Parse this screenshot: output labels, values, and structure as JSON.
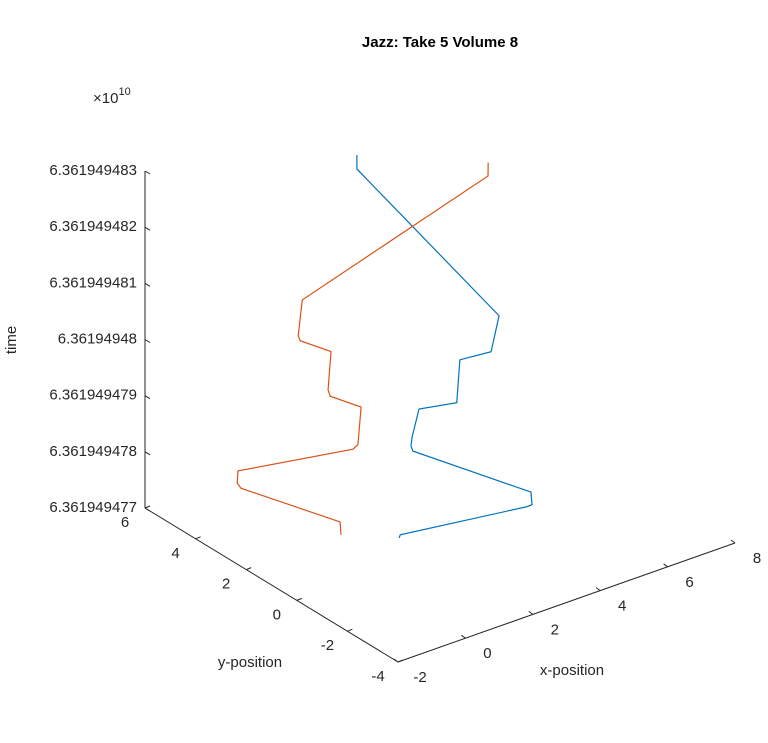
{
  "chart_data": {
    "type": "line3d",
    "title": "Jazz: Take 5 Volume 8",
    "xlabel": "x-position",
    "ylabel": "y-position",
    "zlabel": "time",
    "z_multiplier": "×10",
    "z_exponent": "10",
    "xlim": [
      -2,
      8
    ],
    "ylim": [
      -4,
      6
    ],
    "zlim": [
      63619494770,
      63619494830
    ],
    "xticks": [
      -2,
      0,
      2,
      4,
      6,
      8
    ],
    "yticks": [
      -4,
      -2,
      0,
      2,
      4,
      6
    ],
    "zticks": [
      {
        "value": 63619494770,
        "label": "6.361949477"
      },
      {
        "value": 63619494780,
        "label": "6.361949478"
      },
      {
        "value": 63619494790,
        "label": "6.361949479"
      },
      {
        "value": 63619494800,
        "label": "6.36194948"
      },
      {
        "value": 63619494810,
        "label": "6.361949481"
      },
      {
        "value": 63619494820,
        "label": "6.361949482"
      },
      {
        "value": 63619494830,
        "label": "6.361949483"
      }
    ],
    "series": [
      {
        "color": "#0072bd",
        "x": [
          1.85,
          1.88,
          4.36,
          4.47,
          4.49,
          2.43,
          2.41,
          2.46,
          2.7,
          3.43,
          3.65,
          4.26,
          4.55,
          2.42,
          2.47
        ],
        "y": [
          1.08,
          1.08,
          -0.62,
          -0.68,
          -0.61,
          1.31,
          1.36,
          1.39,
          1.43,
          0.91,
          1.08,
          0.66,
          0.73,
          3.51,
          3.58
        ],
        "z": [
          63619494770,
          63619494770.5,
          63619494774.9,
          63619494775.2,
          63619494777.2,
          63619494783.6,
          63619494784.4,
          63619494785.7,
          63619494790.2,
          63619494791.2,
          63619494797.9,
          63619494799.2,
          63619494804.8,
          63619494827.8,
          63619494830
        ]
      },
      {
        "color": "#d95319",
        "x": [
          0.77,
          0.8,
          -0.94,
          -0.99,
          -0.93,
          1.31,
          1.42,
          1.62,
          1.08,
          1.06,
          1.26,
          0.72,
          0.7,
          0.91,
          4.86,
          4.91
        ],
        "y": [
          1.94,
          2.02,
          3.62,
          3.7,
          3.75,
          2.19,
          2.14,
          2.28,
          2.78,
          2.84,
          2.99,
          3.49,
          3.54,
          3.66,
          1.58,
          1.64
        ],
        "z": [
          63619494770.5,
          63619494772.5,
          63619494777.8,
          63619494778.6,
          63619494780.5,
          63619494783.9,
          63619494784.6,
          63619494790.5,
          63619494792.2,
          63619494793.2,
          63619494799.2,
          63619494800.9,
          63619494801.7,
          63619494807.3,
          63619494826.7,
          63619494828.8
        ]
      }
    ]
  }
}
